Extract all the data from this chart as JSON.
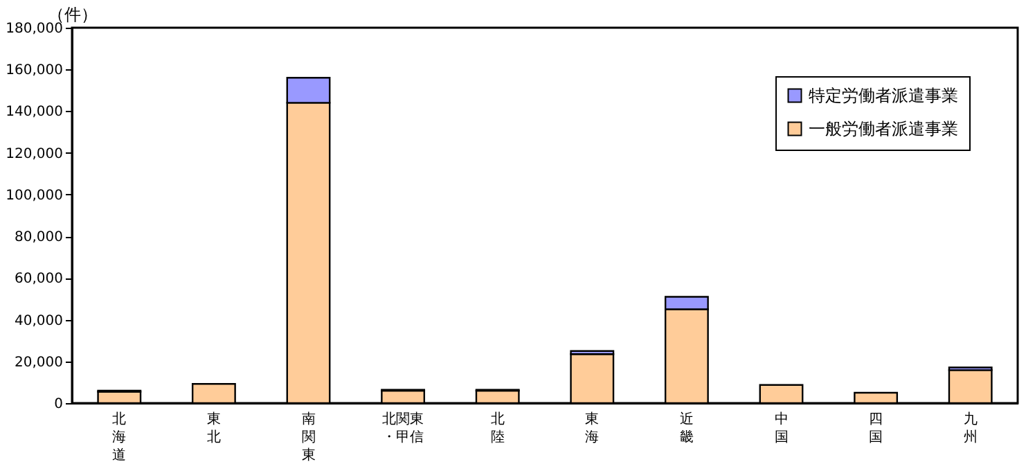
{
  "chart_data": {
    "type": "bar",
    "stacked": true,
    "ylabel": "（件）",
    "categories": [
      "北海道",
      "東北",
      "南関東",
      "北関東・甲信",
      "北陸",
      "東海",
      "近畿",
      "中国",
      "四国",
      "九州"
    ],
    "series": [
      {
        "name": "一般労働者派遣事業",
        "color": "#ffcc99",
        "values": [
          5500,
          9200,
          144000,
          6000,
          6000,
          23500,
          45000,
          8700,
          5000,
          15800
        ]
      },
      {
        "name": "特定労働者派遣事業",
        "color": "#9999ff",
        "values": [
          500,
          null,
          12000,
          400,
          400,
          1500,
          6000,
          null,
          null,
          1300
        ]
      }
    ],
    "ylim": [
      0,
      180000
    ],
    "yticks": [
      0,
      {
        "value": 20000,
        "label": "20,000"
      },
      {
        "value": 40000,
        "label": "40,000"
      },
      {
        "value": 60000,
        "label": "60,000"
      },
      {
        "value": 80000,
        "label": "80,000"
      },
      {
        "value": 100000,
        "label": "100,000"
      },
      {
        "value": 120000,
        "label": "120,000"
      },
      {
        "value": 140000,
        "label": "140,000"
      },
      {
        "value": 160000,
        "label": "160,000"
      },
      {
        "value": 180000,
        "label": "180,000"
      }
    ],
    "grid": false,
    "legend": "top right"
  }
}
